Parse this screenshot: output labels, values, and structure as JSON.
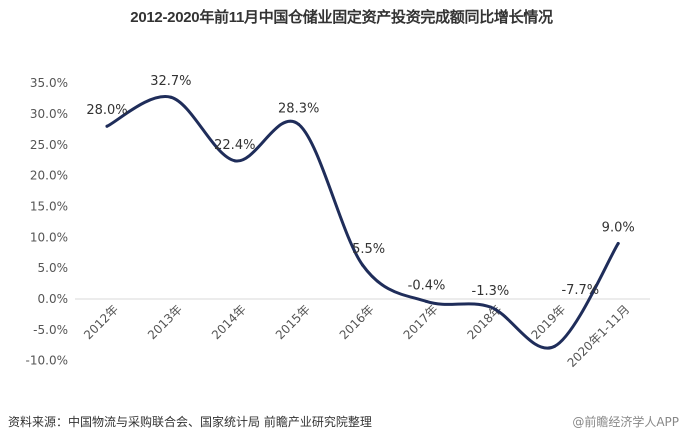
{
  "chart_data": {
    "type": "line",
    "title": "2012-2020年前11月中国仓储业固定资产投资完成额同比增长情况",
    "categories": [
      "2012年",
      "2013年",
      "2014年",
      "2015年",
      "2016年",
      "2017年",
      "2018年",
      "2019年",
      "2020年1-11月"
    ],
    "values": [
      28.0,
      32.7,
      22.4,
      28.3,
      5.5,
      -0.4,
      -1.3,
      -7.7,
      9.0
    ],
    "data_labels": [
      "28.0%",
      "32.7%",
      "22.4%",
      "28.3%",
      "5.5%",
      "-0.4%",
      "-1.3%",
      "-7.7%",
      "9.0%"
    ],
    "yticks": [
      "35.0%",
      "30.0%",
      "25.0%",
      "20.0%",
      "15.0%",
      "10.0%",
      "5.0%",
      "0.0%",
      "-5.0%",
      "-10.0%"
    ],
    "ylim": [
      -10,
      35
    ],
    "xlabel": "",
    "ylabel": "",
    "grid": false,
    "smooth": true,
    "line_color": "#1f2d5a"
  },
  "footer": {
    "source": "资料来源：中国物流与采购联合会、国家统计局 前瞻产业研究院整理",
    "credit": "@前瞻经济学人APP"
  }
}
